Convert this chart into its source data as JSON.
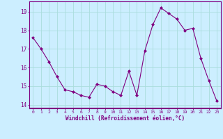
{
  "x": [
    0,
    1,
    2,
    3,
    4,
    5,
    6,
    7,
    8,
    9,
    10,
    11,
    12,
    13,
    14,
    15,
    16,
    17,
    18,
    19,
    20,
    21,
    22,
    23
  ],
  "y": [
    17.6,
    17.0,
    16.3,
    15.5,
    14.8,
    14.7,
    14.5,
    14.4,
    15.1,
    15.0,
    14.7,
    14.5,
    15.8,
    14.5,
    16.9,
    18.3,
    19.2,
    18.9,
    18.6,
    18.0,
    18.1,
    16.5,
    15.3,
    14.2
  ],
  "line_color": "#800080",
  "marker": "D",
  "marker_size": 2,
  "bg_color": "#cceeff",
  "grid_color": "#aadddd",
  "xlabel": "Windchill (Refroidissement éolien,°C)",
  "xlabel_color": "#800080",
  "tick_color": "#800080",
  "ylim": [
    13.8,
    19.55
  ],
  "yticks": [
    14,
    15,
    16,
    17,
    18,
    19
  ],
  "xticks": [
    0,
    1,
    2,
    3,
    4,
    5,
    6,
    7,
    8,
    9,
    10,
    11,
    12,
    13,
    14,
    15,
    16,
    17,
    18,
    19,
    20,
    21,
    22,
    23
  ]
}
